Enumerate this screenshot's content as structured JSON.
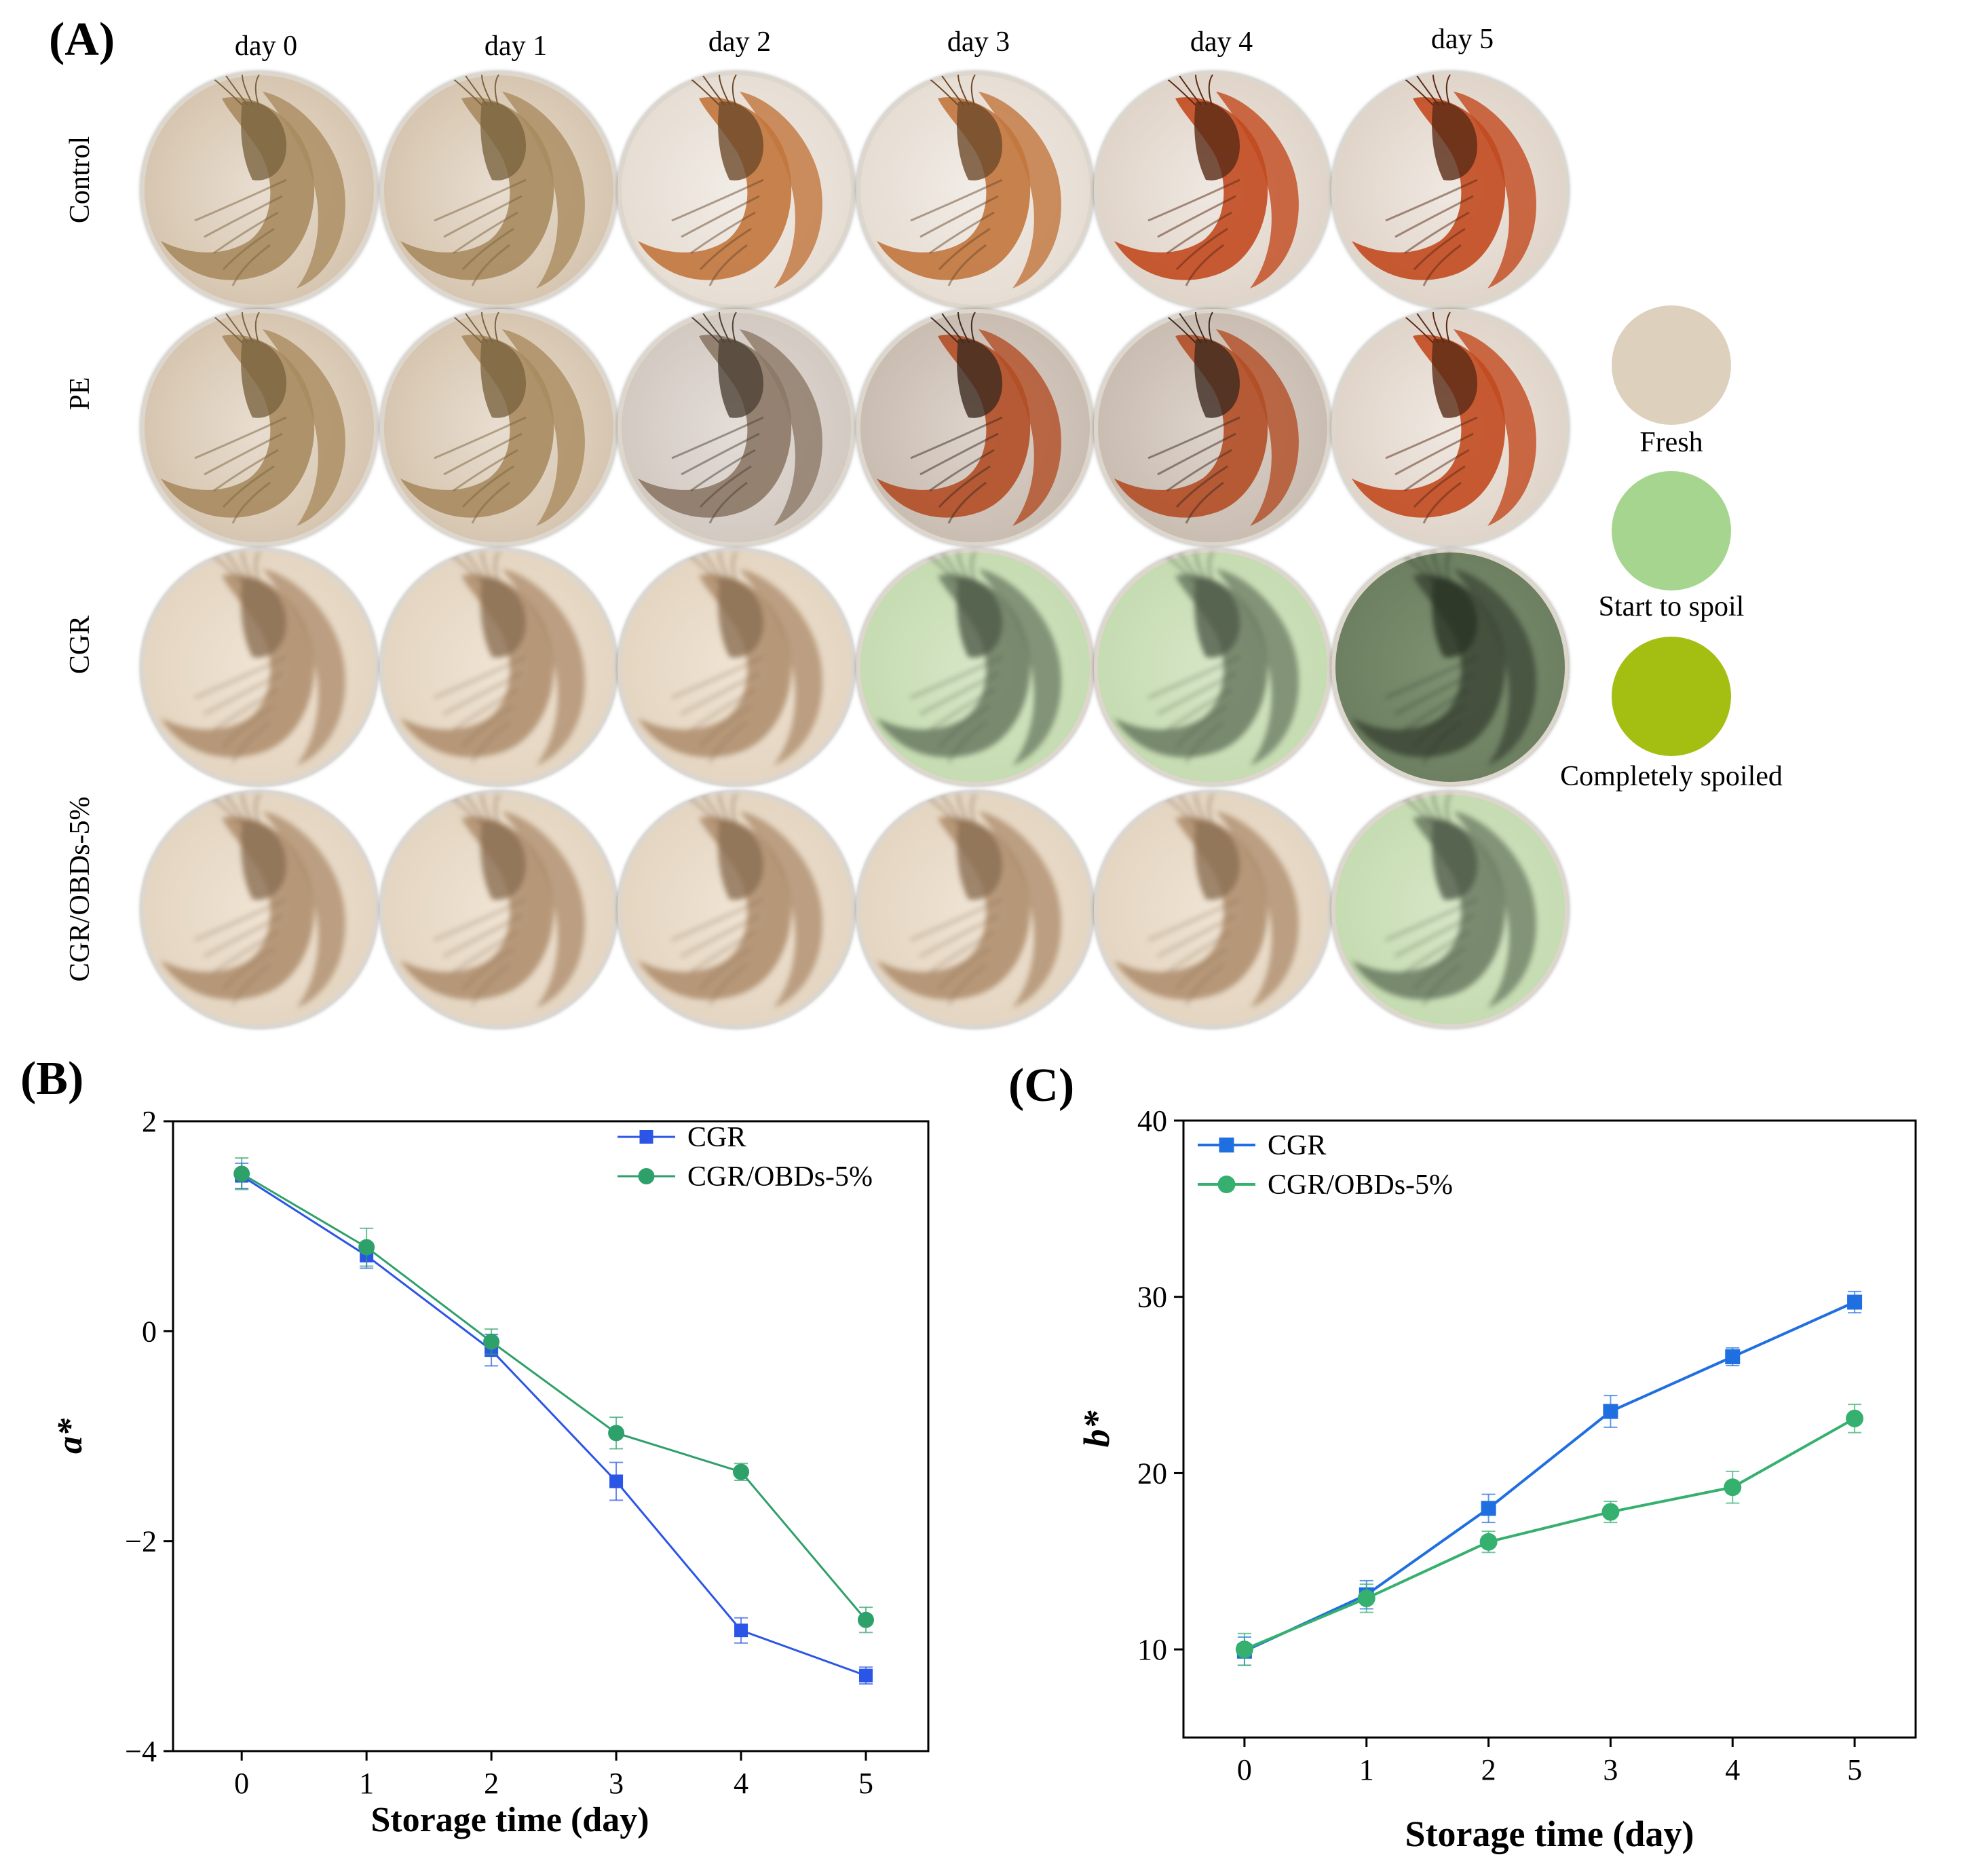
{
  "panelA": {
    "label": "(A)",
    "days": [
      "day 0",
      "day 1",
      "day 2",
      "day 3",
      "day 4",
      "day 5"
    ],
    "rows": [
      {
        "name": "Control",
        "stages": [
          "raw",
          "raw",
          "orange",
          "orange",
          "red",
          "red"
        ]
      },
      {
        "name": "PE",
        "stages": [
          "raw",
          "raw",
          "grey",
          "red-dark",
          "red-dark",
          "red"
        ]
      },
      {
        "name": "CGR",
        "stages": [
          "fresh",
          "fresh",
          "fresh",
          "start",
          "start",
          "spoiled"
        ]
      },
      {
        "name": "CGR/OBDs-5%",
        "stages": [
          "fresh",
          "fresh",
          "fresh",
          "fresh",
          "fresh",
          "start"
        ]
      }
    ],
    "legend": [
      {
        "label": "Fresh",
        "color": "#ddd0bc"
      },
      {
        "label": "Start to spoil",
        "color": "#a5d58f"
      },
      {
        "label": "Completely spoiled",
        "color": "#a4be12"
      }
    ]
  },
  "chart_data": [
    {
      "panel": "(B)",
      "type": "line",
      "title": "",
      "xlabel": "Storage time (day)",
      "ylabel": "a*",
      "x": [
        0,
        1,
        2,
        3,
        4,
        5
      ],
      "xlim": [
        -0.55,
        5.5
      ],
      "ylim": [
        -4,
        2
      ],
      "xticks": [
        "0",
        "1",
        "2",
        "3",
        "4",
        "5"
      ],
      "yticks": [
        -4,
        -2,
        0,
        2
      ],
      "ytick_labels": [
        "−4",
        "−2",
        "0",
        "2"
      ],
      "legend_position": "top-right",
      "series": [
        {
          "name": "CGR",
          "marker": "square",
          "color": "#2b55e6",
          "values": [
            1.48,
            0.72,
            -0.18,
            -1.43,
            -2.85,
            -3.28
          ],
          "errors": [
            0.12,
            0.12,
            0.15,
            0.18,
            0.12,
            0.08
          ]
        },
        {
          "name": "CGR/OBDs-5%",
          "marker": "circle",
          "color": "#2ea06a",
          "values": [
            1.5,
            0.8,
            -0.1,
            -0.97,
            -1.34,
            -2.75
          ],
          "errors": [
            0.15,
            0.18,
            0.12,
            0.15,
            0.08,
            0.12
          ]
        }
      ]
    },
    {
      "panel": "(C)",
      "type": "line",
      "title": "",
      "xlabel": "Storage time (day)",
      "ylabel": "b*",
      "x": [
        0,
        1,
        2,
        3,
        4,
        5
      ],
      "xlim": [
        -0.5,
        5.5
      ],
      "ylim": [
        5,
        40
      ],
      "xticks": [
        "0",
        "1",
        "2",
        "3",
        "4",
        "5"
      ],
      "yticks": [
        10,
        20,
        30,
        40
      ],
      "ytick_labels": [
        "10",
        "20",
        "30",
        "40"
      ],
      "legend_position": "top-left",
      "series": [
        {
          "name": "CGR",
          "marker": "square",
          "color": "#1f6fe0",
          "values": [
            9.9,
            13.1,
            18.0,
            23.5,
            26.6,
            29.7
          ],
          "errors": [
            0.8,
            0.8,
            0.8,
            0.9,
            0.5,
            0.6
          ]
        },
        {
          "name": "CGR/OBDs-5%",
          "marker": "circle",
          "color": "#35b06e",
          "values": [
            10.0,
            12.9,
            16.1,
            17.8,
            19.2,
            23.1
          ],
          "errors": [
            0.9,
            0.8,
            0.6,
            0.6,
            0.9,
            0.8
          ]
        }
      ]
    }
  ]
}
